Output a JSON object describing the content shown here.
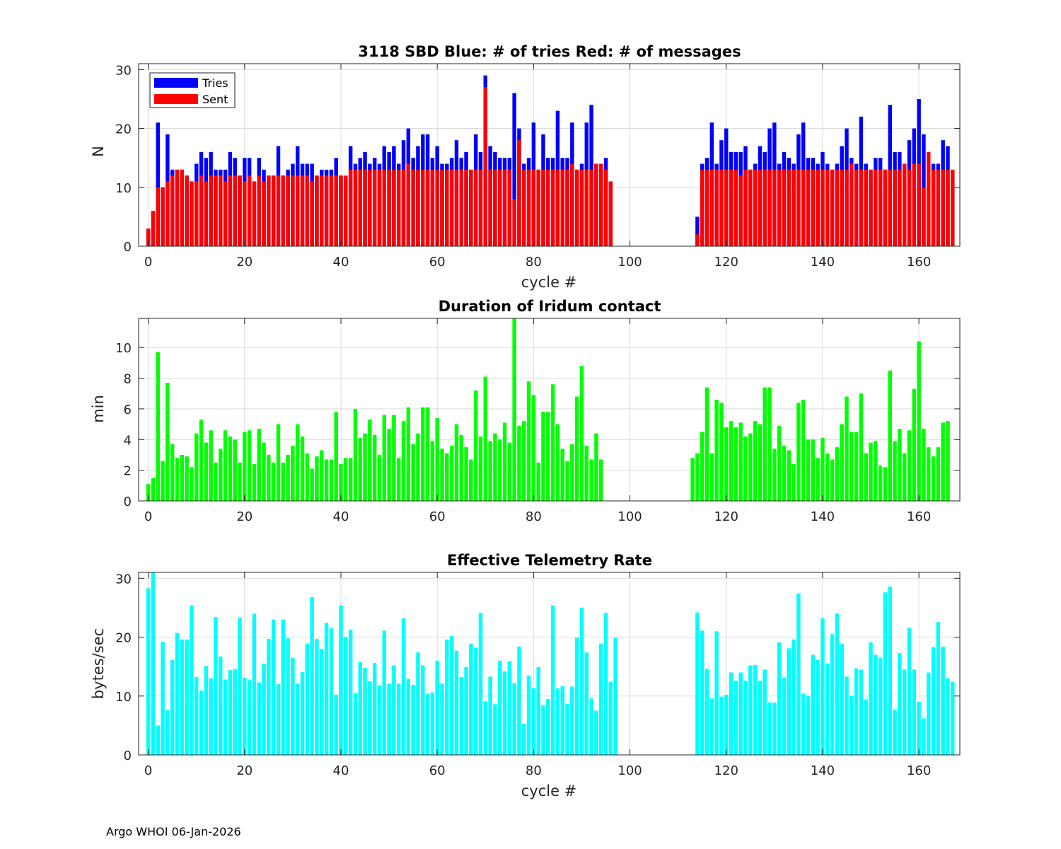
{
  "colors": {
    "tries": "#0000ff",
    "sent": "#ff0000",
    "duration": "#00ff00",
    "rate": "#00ffff"
  },
  "footer": "Argo WHOI 06-Jan-2026",
  "chart_data": [
    {
      "type": "bar",
      "title": "3118 SBD  Blue: # of tries   Red: # of messages",
      "xlabel": "cycle #",
      "ylabel": "N",
      "xlim": [
        -2,
        168.5
      ],
      "ylim": [
        0,
        31
      ],
      "xticks": [
        0,
        20,
        40,
        60,
        80,
        100,
        120,
        140,
        160
      ],
      "yticks": [
        0,
        10,
        20,
        30
      ],
      "legend": {
        "position": "top-left",
        "entries": [
          "Tries",
          "Sent"
        ]
      },
      "x_start": 0,
      "series": [
        {
          "name": "Tries",
          "color_key": "tries",
          "values": [
            3,
            6,
            21,
            10,
            19,
            13,
            13,
            13,
            12,
            11,
            14,
            16,
            15,
            16,
            13,
            13,
            13,
            16,
            15,
            12,
            15,
            15,
            11,
            15,
            13,
            12,
            12,
            17,
            12,
            13,
            14,
            17,
            14,
            14,
            14,
            12,
            13,
            13,
            13,
            15,
            12,
            11,
            17,
            14,
            15,
            16,
            14,
            15,
            14,
            17,
            16,
            17,
            14,
            18,
            20,
            15,
            17,
            19,
            19,
            15,
            17,
            14,
            14,
            15,
            18,
            15,
            16,
            13,
            19,
            16,
            29,
            17,
            16,
            15,
            15,
            15,
            26,
            20,
            14,
            15,
            21,
            13,
            19,
            15,
            15,
            23,
            15,
            15,
            21,
            13,
            14,
            21,
            24,
            14,
            14,
            15,
            11,
            null,
            null,
            null,
            null,
            null,
            null,
            null,
            null,
            null,
            null,
            null,
            null,
            null,
            null,
            null,
            null,
            null,
            5,
            14,
            15,
            21,
            14,
            18,
            20,
            16,
            16,
            16,
            17,
            13,
            14,
            17,
            16,
            20,
            21,
            14,
            16,
            15,
            14,
            19,
            21,
            15,
            15,
            14,
            16,
            14,
            13,
            14,
            17,
            20,
            15,
            14,
            22,
            14,
            13,
            15,
            15,
            13,
            24,
            16,
            16,
            14,
            18,
            20,
            25,
            19,
            14,
            14,
            14,
            18,
            17
          ]
        },
        {
          "name": "Sent",
          "color_key": "sent",
          "values": [
            3,
            6,
            10,
            10,
            11,
            12,
            13,
            13,
            12,
            11,
            11,
            12,
            11,
            12,
            12,
            12,
            11,
            12,
            12,
            12,
            11,
            12,
            11,
            12,
            11,
            12,
            12,
            12,
            12,
            12,
            12,
            12,
            12,
            12,
            11,
            12,
            12,
            12,
            12,
            12,
            12,
            12,
            13,
            13,
            13,
            13,
            13,
            13,
            13,
            13,
            13,
            13,
            13,
            13,
            14,
            13,
            13,
            13,
            13,
            13,
            13,
            13,
            13,
            13,
            13,
            13,
            13,
            13,
            13,
            13,
            27,
            13,
            13,
            13,
            13,
            13,
            8,
            18,
            13,
            13,
            13,
            13,
            13,
            13,
            13,
            13,
            13,
            13,
            14,
            13,
            13,
            13,
            13,
            14,
            14,
            13,
            11,
            null,
            null,
            null,
            null,
            null,
            null,
            null,
            null,
            null,
            null,
            null,
            null,
            null,
            null,
            null,
            null,
            null,
            2,
            13,
            13,
            13,
            13,
            13,
            13,
            13,
            13,
            12,
            13,
            13,
            13,
            13,
            13,
            13,
            13,
            13,
            13,
            13,
            13,
            13,
            13,
            13,
            13,
            13,
            13,
            13,
            13,
            13,
            13,
            13,
            14,
            13,
            13,
            13,
            13,
            13,
            13,
            13,
            13,
            13,
            13,
            14,
            13,
            14,
            14,
            10,
            16,
            13,
            13,
            13,
            13,
            13
          ]
        }
      ]
    },
    {
      "type": "bar",
      "title": "Duration of Iridum contact",
      "xlabel": "",
      "ylabel": "min",
      "xlim": [
        -2,
        168.5
      ],
      "ylim": [
        0,
        11.9
      ],
      "xticks": [
        0,
        20,
        40,
        60,
        80,
        100,
        120,
        140,
        160
      ],
      "yticks": [
        0,
        2,
        4,
        6,
        8,
        10
      ],
      "x_start": 0,
      "series": [
        {
          "name": "Duration",
          "color_key": "duration",
          "values": [
            1.1,
            1.5,
            9.7,
            2.6,
            7.7,
            3.7,
            2.8,
            3.0,
            2.9,
            2.2,
            4.4,
            5.3,
            3.8,
            4.6,
            2.5,
            3.4,
            4.6,
            4.2,
            4.0,
            2.5,
            4.5,
            4.6,
            2.4,
            4.7,
            3.8,
            3.0,
            2.5,
            5.0,
            2.5,
            3.0,
            3.6,
            5.0,
            4.2,
            3.1,
            2.1,
            2.9,
            3.3,
            2.7,
            2.7,
            5.8,
            2.4,
            2.8,
            2.8,
            6.0,
            4.1,
            4.4,
            5.3,
            4.3,
            3.0,
            5.6,
            4.7,
            5.6,
            2.8,
            5.2,
            6.1,
            3.7,
            4.4,
            6.1,
            6.1,
            3.9,
            5.4,
            3.4,
            3.1,
            3.6,
            5.0,
            4.3,
            3.5,
            2.7,
            7.2,
            4.2,
            8.1,
            3.9,
            4.4,
            4.0,
            5.1,
            3.8,
            11.9,
            4.9,
            5.2,
            7.8,
            6.9,
            2.5,
            5.8,
            5.8,
            7.6,
            5.0,
            3.4,
            2.6,
            3.7,
            6.8,
            8.8,
            3.6,
            2.7,
            4.4,
            2.7,
            null,
            null,
            null,
            null,
            null,
            null,
            null,
            null,
            null,
            null,
            null,
            null,
            null,
            null,
            null,
            null,
            null,
            null,
            2.8,
            3.1,
            4.5,
            7.4,
            3.1,
            6.6,
            6.4,
            4.8,
            5.2,
            4.8,
            5.1,
            4.2,
            4.4,
            5.2,
            5.0,
            7.4,
            7.4,
            3.4,
            4.9,
            3.6,
            3.3,
            2.4,
            6.4,
            6.6,
            4.0,
            4.0,
            2.8,
            4.1,
            3.1,
            2.7,
            3.5,
            5.0,
            6.8,
            4.5,
            4.5,
            7.0,
            3.1,
            3.8,
            3.9,
            2.3,
            2.2,
            8.5,
            3.9,
            4.7,
            3.1,
            4.6,
            7.3,
            10.4,
            4.7,
            3.5,
            2.9,
            3.5,
            5.1,
            5.2
          ]
        }
      ]
    },
    {
      "type": "bar",
      "title": "Effective Telemetry Rate",
      "xlabel": "cycle #",
      "ylabel": "bytes/sec",
      "xlim": [
        -2,
        168.5
      ],
      "ylim": [
        0,
        31
      ],
      "xticks": [
        0,
        20,
        40,
        60,
        80,
        100,
        120,
        140,
        160
      ],
      "yticks": [
        0,
        10,
        20,
        30
      ],
      "x_start": 0,
      "series": [
        {
          "name": "Rate",
          "color_key": "rate",
          "values": [
            28.3,
            31,
            5.0,
            19.2,
            7.6,
            16.1,
            20.7,
            19.6,
            19.6,
            25.4,
            13.2,
            10.9,
            15.1,
            13,
            23.4,
            16.7,
            12.8,
            14.4,
            14.6,
            23.3,
            13.1,
            12.7,
            24,
            12.3,
            15.5,
            19.7,
            23,
            12,
            23,
            19.8,
            16.5,
            12.1,
            14.1,
            18.9,
            26.8,
            19.7,
            18,
            22.4,
            21.5,
            10.2,
            25.4,
            20,
            21.3,
            10.5,
            15.8,
            14.8,
            12.5,
            15.6,
            11.8,
            21.1,
            12.1,
            15.2,
            12.1,
            23.2,
            12.9,
            11.9,
            17.4,
            15.2,
            10.4,
            10.6,
            16,
            12.1,
            19.6,
            20.2,
            17.7,
            13.2,
            14.9,
            18.9,
            18.2,
            24.1,
            9.1,
            13.3,
            8.6,
            16,
            14.2,
            15.9,
            12.2,
            18.4,
            5.3,
            13.5,
            11.3,
            14.9,
            8.4,
            9.5,
            25.4,
            11.3,
            11.7,
            8.7,
            11.6,
            19.9,
            25,
            17.4,
            9.6,
            7.5,
            18.9,
            24.1,
            12.4,
            19.9,
            null,
            null,
            null,
            null,
            null,
            null,
            null,
            null,
            null,
            null,
            null,
            null,
            null,
            null,
            null,
            null,
            24.2,
            21.1,
            14.6,
            9.6,
            21.0,
            9.9,
            10.2,
            14,
            12.6,
            14,
            12.6,
            15.2,
            15.3,
            12.6,
            14.5,
            8.9,
            8.9,
            19.1,
            13.1,
            18.1,
            19.6,
            27.4,
            10.4,
            10,
            17,
            16.1,
            23.2,
            15.5,
            20.5,
            24,
            18.9,
            13.3,
            10,
            14.7,
            14.5,
            9.4,
            19.1,
            17,
            16.5,
            27.6,
            28.6,
            7.7,
            17.3,
            14.5,
            21.6,
            14.5,
            9,
            6.2,
            14,
            18.3,
            22.6,
            18.4,
            13,
            12.4
          ]
        }
      ]
    }
  ]
}
